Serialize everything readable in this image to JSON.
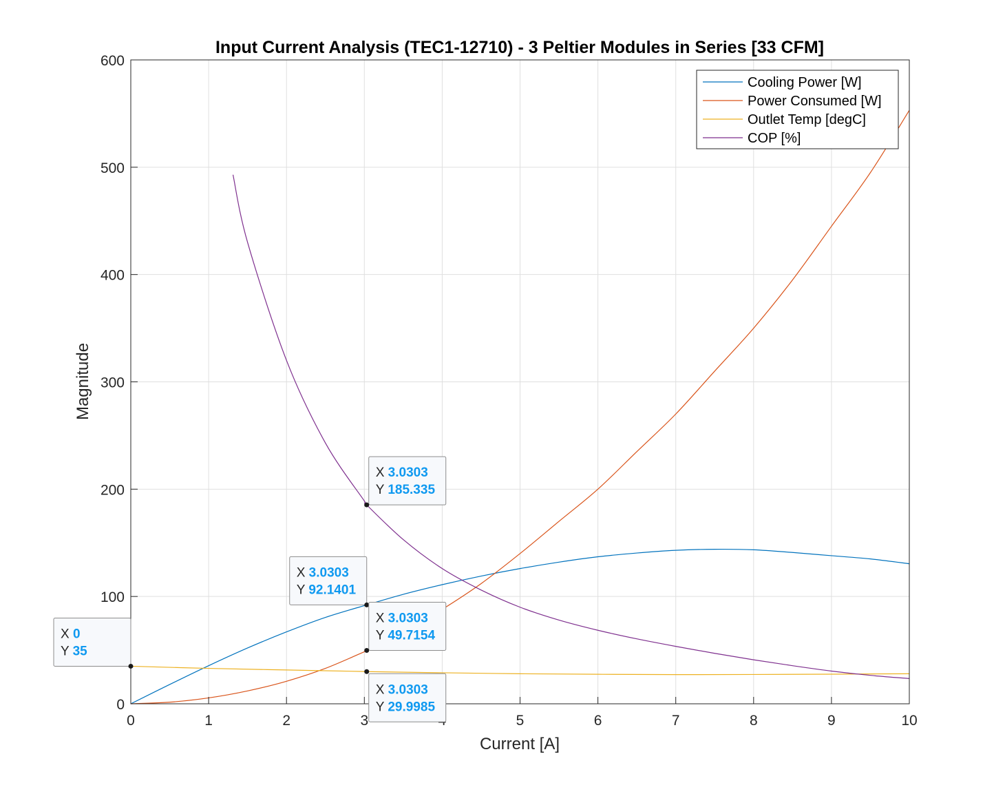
{
  "chart_data": {
    "type": "line",
    "title": "Input Current Analysis (TEC1-12710) - 3 Peltier Modules in Series [33 CFM]",
    "xlabel": "Current [A]",
    "ylabel": "Magnitude",
    "xlim": [
      0,
      10
    ],
    "ylim": [
      0,
      600
    ],
    "xticks": [
      0,
      1,
      2,
      3,
      4,
      5,
      6,
      7,
      8,
      9,
      10
    ],
    "yticks": [
      0,
      100,
      200,
      300,
      400,
      500,
      600
    ],
    "grid": true,
    "legend_position": "top-right",
    "series": [
      {
        "name": "Cooling Power [W]",
        "color": "#0072bd",
        "x": [
          0,
          0.5,
          1,
          1.5,
          2,
          2.5,
          3,
          3.0303,
          3.5,
          4,
          4.5,
          5,
          5.5,
          6,
          6.5,
          7,
          7.5,
          8,
          8.5,
          9,
          9.5,
          10
        ],
        "y": [
          0,
          18,
          35.5,
          52,
          67,
          80.5,
          91.5,
          92.14,
          102,
          111,
          119,
          126,
          132,
          137,
          140.5,
          143,
          144,
          143.5,
          141,
          138,
          135,
          130.5
        ]
      },
      {
        "name": "Power Consumed [W]",
        "color": "#d95319",
        "x": [
          0,
          0.5,
          1,
          1.5,
          2,
          2.5,
          3,
          3.0303,
          3.5,
          4,
          4.5,
          5,
          5.5,
          6,
          6.5,
          7,
          7.5,
          8,
          8.5,
          9,
          9.5,
          10
        ],
        "y": [
          0,
          1.5,
          5.5,
          12,
          21,
          33,
          48.5,
          49.72,
          66.5,
          88,
          112,
          140,
          170,
          200,
          235,
          270,
          310,
          350,
          395,
          445,
          495,
          553
        ]
      },
      {
        "name": "Outlet Temp [degC]",
        "color": "#edb120",
        "x": [
          0,
          1,
          2,
          3,
          3.0303,
          4,
          5,
          6,
          7,
          8,
          9,
          10
        ],
        "y": [
          35,
          33,
          31.5,
          30.1,
          29.9985,
          28.9,
          28,
          27.5,
          27.2,
          27.3,
          27.6,
          28
        ]
      },
      {
        "name": "COP [%]",
        "color": "#7e2f8e",
        "x": [
          1.313,
          1.5,
          2,
          2.5,
          3,
          3.0303,
          3.5,
          4,
          4.5,
          5,
          5.5,
          6,
          6.5,
          7,
          7.5,
          8,
          8.5,
          9,
          9.5,
          10
        ],
        "y": [
          493,
          430,
          320,
          243,
          189,
          185.335,
          153,
          126,
          106,
          90,
          78,
          68.5,
          60.5,
          53.5,
          47,
          41,
          35.5,
          30.5,
          26.5,
          23.5
        ]
      }
    ],
    "datatips": [
      {
        "x": 0,
        "y": 35,
        "x_label": "X",
        "y_label": "Y",
        "x_text": "0",
        "y_text": "35",
        "placement": "upper-left"
      },
      {
        "x": 3.0303,
        "y": 185.335,
        "x_label": "X",
        "y_label": "Y",
        "x_text": "3.0303",
        "y_text": "185.335",
        "placement": "upper-right"
      },
      {
        "x": 3.0303,
        "y": 92.1401,
        "x_label": "X",
        "y_label": "Y",
        "x_text": "3.0303",
        "y_text": "92.1401",
        "placement": "upper-left"
      },
      {
        "x": 3.0303,
        "y": 49.7154,
        "x_label": "X",
        "y_label": "Y",
        "x_text": "3.0303",
        "y_text": "49.7154",
        "placement": "upper-right"
      },
      {
        "x": 3.0303,
        "y": 29.9985,
        "x_label": "X",
        "y_label": "Y",
        "x_text": "3.0303",
        "y_text": "29.9985",
        "placement": "lower-right"
      }
    ]
  }
}
